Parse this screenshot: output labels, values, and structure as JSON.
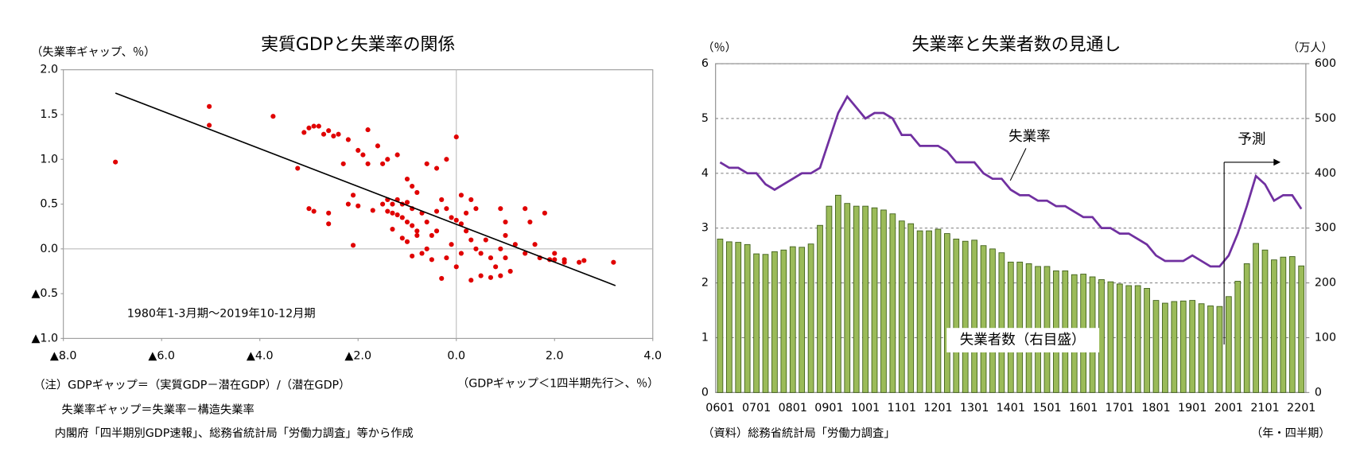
{
  "chart_data": [
    {
      "type": "scatter",
      "title": "実質GDPと失業率の関係",
      "y_label": "（失業率ギャップ、％）",
      "x_label": "（GDPギャップ＜1四半期先行＞、％）",
      "annotation": "1980年1-3月期～2019年10-12月期",
      "notes": [
        "（注）GDPギャップ＝（実質GDP－潜在GDP）/（潜在GDP）",
        "失業率ギャップ＝失業率－構造失業率",
        "内閣府「四半期別GDP速報」、総務省統計局「労働力調査」等から作成"
      ],
      "xlim": [
        -8,
        4
      ],
      "ylim": [
        -1,
        2
      ],
      "xticks": [
        {
          "value": -8,
          "label": "▲8.0"
        },
        {
          "value": -6,
          "label": "▲6.0"
        },
        {
          "value": -4,
          "label": "▲4.0"
        },
        {
          "value": -2,
          "label": "▲2.0"
        },
        {
          "value": 0,
          "label": "0.0"
        },
        {
          "value": 2,
          "label": "2.0"
        },
        {
          "value": 4,
          "label": "4.0"
        }
      ],
      "yticks": [
        {
          "value": 2,
          "label": "2.0"
        },
        1.5,
        {
          "value": 1,
          "label": "1.0"
        },
        0.5,
        {
          "value": 0,
          "label": "0.0"
        },
        {
          "value": -0.5,
          "label": "▲0.5"
        },
        {
          "value": -1,
          "label": "▲1.0"
        }
      ],
      "series": [
        {
          "kind": "points",
          "color": "#e00000",
          "x": [
            -6.94,
            -5.03,
            -5.03,
            -3.73,
            -3.23,
            -3.1,
            -3.0,
            -2.9,
            -2.8,
            -2.7,
            -2.6,
            -2.5,
            -2.4,
            -2.2,
            -2.0,
            -1.9,
            -1.8,
            -2.3,
            -3.0,
            -2.9,
            -2.6,
            -2.6,
            -2.1,
            -2.0,
            -2.2,
            -2.1,
            -1.7,
            -1.5,
            -1.4,
            -1.3,
            -1.2,
            -1.1,
            -1.0,
            -0.9,
            -1.4,
            -1.3,
            -1.2,
            -1.1,
            -1.0,
            -0.9,
            -1.8,
            -1.6,
            -1.4,
            -1.2,
            -1.0,
            -0.9,
            -0.8,
            -1.5,
            -0.6,
            -0.4,
            -0.2,
            0.0,
            -1.3,
            -1.1,
            -1.0,
            -0.8,
            -0.7,
            -0.6,
            -0.5,
            -0.4,
            -0.3,
            -0.2,
            -0.1,
            0.0,
            0.1,
            0.2,
            0.3,
            0.4,
            0.2,
            0.3,
            0.4,
            0.5,
            0.6,
            0.7,
            0.8,
            0.9,
            1.0,
            1.1,
            0.5,
            0.7,
            0.3,
            0.0,
            -0.2,
            -0.3,
            -0.5,
            -0.6,
            -0.7,
            -0.8,
            -0.9,
            0.9,
            1.0,
            1.0,
            1.4,
            1.5,
            1.8,
            1.4,
            1.7,
            1.9,
            2.0,
            2.2,
            2.2,
            2.5,
            2.6,
            3.2,
            2.0,
            1.2,
            1.6,
            0.9,
            0.1,
            -0.4,
            -0.1,
            0.1
          ],
          "y": [
            0.97,
            1.59,
            1.38,
            1.48,
            0.9,
            1.3,
            1.35,
            1.37,
            1.37,
            1.28,
            1.32,
            1.26,
            1.28,
            1.22,
            1.1,
            1.05,
            0.95,
            0.95,
            0.45,
            0.42,
            0.4,
            0.28,
            0.6,
            0.48,
            0.5,
            0.04,
            0.43,
            0.5,
            0.55,
            0.5,
            0.55,
            0.5,
            0.52,
            0.45,
            0.42,
            0.4,
            0.38,
            0.35,
            0.3,
            0.26,
            1.33,
            1.15,
            1.0,
            1.05,
            0.78,
            0.7,
            0.63,
            0.95,
            0.95,
            0.9,
            1.0,
            1.25,
            0.22,
            0.12,
            0.08,
            0.2,
            0.4,
            0.3,
            0.15,
            0.42,
            0.55,
            0.45,
            0.35,
            0.32,
            0.28,
            0.4,
            0.55,
            0.45,
            0.2,
            0.1,
            0.0,
            -0.05,
            0.1,
            -0.1,
            -0.2,
            -0.3,
            -0.1,
            -0.25,
            -0.3,
            -0.32,
            -0.35,
            -0.2,
            -0.1,
            -0.33,
            -0.12,
            0.0,
            -0.05,
            0.15,
            -0.08,
            0.45,
            0.3,
            0.15,
            0.45,
            0.3,
            0.4,
            -0.05,
            -0.1,
            -0.12,
            -0.12,
            -0.15,
            -0.12,
            -0.15,
            -0.13,
            -0.15,
            -0.05,
            0.05,
            0.05,
            0.0,
            -0.05,
            0.2,
            0.05,
            0.6
          ]
        },
        {
          "kind": "trend",
          "color": "#000000",
          "x": [
            -6.94,
            3.24
          ],
          "y": [
            1.74,
            -0.41
          ]
        }
      ]
    },
    {
      "type": "combo",
      "title": "失業率と失業者数の見通し",
      "y_label": "（％）",
      "y2_label": "（万人）",
      "x_label": "（年・四半期）",
      "source": "（資料）総務省統計局「労働力調査」",
      "forecast_label": "予測",
      "categories": [
        "0601",
        null,
        null,
        null,
        "0701",
        null,
        null,
        null,
        "0801",
        null,
        null,
        null,
        "0901",
        null,
        null,
        null,
        "1001",
        null,
        null,
        null,
        "1101",
        null,
        null,
        null,
        "1201",
        null,
        null,
        null,
        "1301",
        null,
        null,
        null,
        "1401",
        null,
        null,
        null,
        "1501",
        null,
        null,
        null,
        "1601",
        null,
        null,
        null,
        "1701",
        null,
        null,
        null,
        "1801",
        null,
        null,
        null,
        "1901",
        null,
        null,
        null,
        "2001",
        null,
        null,
        null,
        "2101",
        null,
        null,
        null,
        "2201"
      ],
      "ylim": [
        0,
        6
      ],
      "yticks": [
        0,
        1,
        2,
        3,
        4,
        5,
        6
      ],
      "y2lim": [
        0,
        600
      ],
      "y2ticks": [
        0,
        100,
        200,
        300,
        400,
        500,
        600
      ],
      "grid": true,
      "series": [
        {
          "name": "失業率",
          "kind": "line",
          "color": "#7030a0",
          "values": [
            4.2,
            4.1,
            4.1,
            4.0,
            4.0,
            3.8,
            3.7,
            3.8,
            3.9,
            4.0,
            4.0,
            4.1,
            4.6,
            5.1,
            5.4,
            5.2,
            5.0,
            5.1,
            5.1,
            5.0,
            4.7,
            4.7,
            4.5,
            4.5,
            4.5,
            4.4,
            4.2,
            4.2,
            4.2,
            4.0,
            3.9,
            3.9,
            3.7,
            3.6,
            3.6,
            3.5,
            3.5,
            3.4,
            3.4,
            3.3,
            3.2,
            3.2,
            3.0,
            3.0,
            2.9,
            2.9,
            2.8,
            2.7,
            2.5,
            2.4,
            2.4,
            2.4,
            2.5,
            2.4,
            2.3,
            2.3,
            2.5,
            2.9,
            3.4,
            3.95,
            3.8,
            3.5,
            3.6,
            3.6,
            3.35
          ]
        },
        {
          "name": "失業者数（右目盛）",
          "kind": "bar",
          "axis": "y2",
          "color": "#9bbb59",
          "values": [
            280,
            275,
            274,
            270,
            253,
            252,
            257,
            260,
            266,
            265,
            271,
            305,
            340,
            360,
            345,
            340,
            340,
            337,
            333,
            326,
            313,
            308,
            295,
            295,
            298,
            290,
            280,
            276,
            278,
            268,
            262,
            255,
            238,
            238,
            235,
            230,
            230,
            222,
            222,
            215,
            216,
            211,
            206,
            202,
            198,
            195,
            195,
            190,
            168,
            163,
            166,
            167,
            168,
            162,
            158,
            157,
            175,
            203,
            235,
            272,
            260,
            242,
            247,
            248,
            231
          ]
        }
      ]
    }
  ]
}
